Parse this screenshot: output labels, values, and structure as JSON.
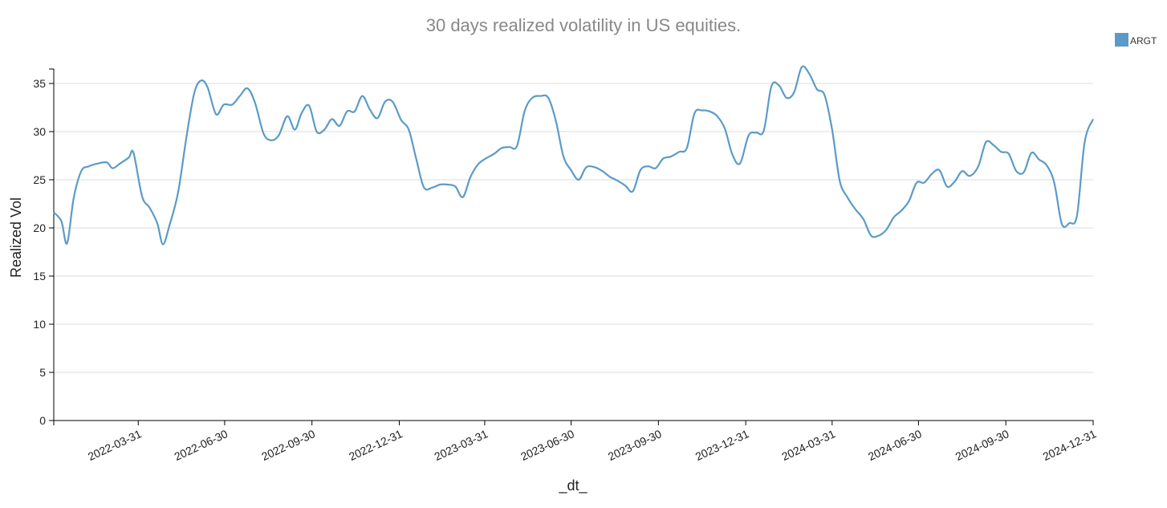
{
  "chart_data": {
    "type": "line",
    "title": "30 days realized volatility in US equities.",
    "xlabel": "_dt_",
    "ylabel": "Realized Vol",
    "ylim": [
      0,
      36.5
    ],
    "xlim": [
      "2022-01-01",
      "2024-12-31"
    ],
    "yticks": [
      0,
      5,
      10,
      15,
      20,
      25,
      30,
      35
    ],
    "xticks": [
      "2022-03-31",
      "2022-06-30",
      "2022-09-30",
      "2022-12-31",
      "2023-03-31",
      "2023-06-30",
      "2023-09-30",
      "2023-12-31",
      "2024-03-31",
      "2024-06-30",
      "2024-09-30",
      "2024-12-31"
    ],
    "grid": "horizontal",
    "legend_position": "top-right",
    "series": [
      {
        "name": "ARGT",
        "color": "#5b9bc8",
        "points": [
          [
            "2022-01-01",
            21.6
          ],
          [
            "2022-01-09",
            20.7
          ],
          [
            "2022-01-15",
            18.4
          ],
          [
            "2022-01-22",
            23.1
          ],
          [
            "2022-01-30",
            25.9
          ],
          [
            "2022-02-07",
            26.4
          ],
          [
            "2022-02-17",
            26.7
          ],
          [
            "2022-02-26",
            26.8
          ],
          [
            "2022-03-04",
            26.2
          ],
          [
            "2022-03-12",
            26.7
          ],
          [
            "2022-03-21",
            27.3
          ],
          [
            "2022-03-26",
            27.8
          ],
          [
            "2022-04-04",
            23.3
          ],
          [
            "2022-04-12",
            22.1
          ],
          [
            "2022-04-20",
            20.5
          ],
          [
            "2022-04-26",
            18.3
          ],
          [
            "2022-05-03",
            20.3
          ],
          [
            "2022-05-12",
            23.7
          ],
          [
            "2022-05-21",
            29.6
          ],
          [
            "2022-05-29",
            34.0
          ],
          [
            "2022-06-05",
            35.3
          ],
          [
            "2022-06-12",
            34.6
          ],
          [
            "2022-06-21",
            31.8
          ],
          [
            "2022-06-29",
            32.8
          ],
          [
            "2022-07-08",
            32.8
          ],
          [
            "2022-07-16",
            33.7
          ],
          [
            "2022-07-24",
            34.5
          ],
          [
            "2022-08-01",
            33.0
          ],
          [
            "2022-08-10",
            29.8
          ],
          [
            "2022-08-18",
            29.1
          ],
          [
            "2022-08-26",
            29.6
          ],
          [
            "2022-09-04",
            31.6
          ],
          [
            "2022-09-12",
            30.2
          ],
          [
            "2022-09-19",
            31.9
          ],
          [
            "2022-09-27",
            32.7
          ],
          [
            "2022-10-05",
            30.0
          ],
          [
            "2022-10-13",
            30.2
          ],
          [
            "2022-10-21",
            31.3
          ],
          [
            "2022-10-29",
            30.6
          ],
          [
            "2022-11-06",
            32.1
          ],
          [
            "2022-11-14",
            32.1
          ],
          [
            "2022-11-22",
            33.7
          ],
          [
            "2022-11-30",
            32.3
          ],
          [
            "2022-12-08",
            31.4
          ],
          [
            "2022-12-16",
            33.1
          ],
          [
            "2022-12-24",
            33.1
          ],
          [
            "2023-01-02",
            31.2
          ],
          [
            "2023-01-10",
            30.2
          ],
          [
            "2023-01-18",
            27.1
          ],
          [
            "2023-01-26",
            24.2
          ],
          [
            "2023-02-04",
            24.2
          ],
          [
            "2023-02-12",
            24.5
          ],
          [
            "2023-02-20",
            24.5
          ],
          [
            "2023-02-28",
            24.3
          ],
          [
            "2023-03-08",
            23.2
          ],
          [
            "2023-03-16",
            25.3
          ],
          [
            "2023-03-24",
            26.6
          ],
          [
            "2023-04-01",
            27.2
          ],
          [
            "2023-04-10",
            27.7
          ],
          [
            "2023-04-18",
            28.3
          ],
          [
            "2023-04-26",
            28.4
          ],
          [
            "2023-05-04",
            28.5
          ],
          [
            "2023-05-12",
            32.1
          ],
          [
            "2023-05-20",
            33.5
          ],
          [
            "2023-05-29",
            33.7
          ],
          [
            "2023-06-06",
            33.5
          ],
          [
            "2023-06-14",
            31.1
          ],
          [
            "2023-06-22",
            27.4
          ],
          [
            "2023-06-30",
            26.0
          ],
          [
            "2023-07-08",
            25.0
          ],
          [
            "2023-07-16",
            26.3
          ],
          [
            "2023-07-25",
            26.3
          ],
          [
            "2023-08-02",
            25.9
          ],
          [
            "2023-08-10",
            25.3
          ],
          [
            "2023-08-18",
            24.9
          ],
          [
            "2023-08-26",
            24.4
          ],
          [
            "2023-09-03",
            23.8
          ],
          [
            "2023-09-11",
            26.0
          ],
          [
            "2023-09-19",
            26.4
          ],
          [
            "2023-09-27",
            26.2
          ],
          [
            "2023-10-05",
            27.2
          ],
          [
            "2023-10-13",
            27.4
          ],
          [
            "2023-10-22",
            27.9
          ],
          [
            "2023-10-30",
            28.3
          ],
          [
            "2023-11-07",
            31.9
          ],
          [
            "2023-11-15",
            32.2
          ],
          [
            "2023-11-23",
            32.1
          ],
          [
            "2023-12-01",
            31.6
          ],
          [
            "2023-12-09",
            30.3
          ],
          [
            "2023-12-17",
            27.6
          ],
          [
            "2023-12-25",
            26.7
          ],
          [
            "2024-01-03",
            29.6
          ],
          [
            "2024-01-11",
            29.9
          ],
          [
            "2024-01-19",
            30.1
          ],
          [
            "2024-01-27",
            34.7
          ],
          [
            "2024-02-04",
            34.8
          ],
          [
            "2024-02-12",
            33.5
          ],
          [
            "2024-02-20",
            34.1
          ],
          [
            "2024-02-28",
            36.7
          ],
          [
            "2024-03-07",
            36.0
          ],
          [
            "2024-03-15",
            34.4
          ],
          [
            "2024-03-23",
            33.8
          ],
          [
            "2024-03-31",
            30.2
          ],
          [
            "2024-04-08",
            24.9
          ],
          [
            "2024-04-16",
            23.2
          ],
          [
            "2024-04-24",
            22.0
          ],
          [
            "2024-05-03",
            20.9
          ],
          [
            "2024-05-11",
            19.2
          ],
          [
            "2024-05-19",
            19.2
          ],
          [
            "2024-05-27",
            19.8
          ],
          [
            "2024-06-04",
            21.1
          ],
          [
            "2024-06-12",
            21.8
          ],
          [
            "2024-06-20",
            22.8
          ],
          [
            "2024-06-28",
            24.7
          ],
          [
            "2024-07-06",
            24.7
          ],
          [
            "2024-07-14",
            25.6
          ],
          [
            "2024-07-22",
            26.0
          ],
          [
            "2024-07-30",
            24.3
          ],
          [
            "2024-08-07",
            24.8
          ],
          [
            "2024-08-15",
            25.9
          ],
          [
            "2024-08-23",
            25.4
          ],
          [
            "2024-09-01",
            26.4
          ],
          [
            "2024-09-09",
            28.9
          ],
          [
            "2024-09-17",
            28.6
          ],
          [
            "2024-09-25",
            27.9
          ],
          [
            "2024-10-03",
            27.7
          ],
          [
            "2024-10-11",
            25.9
          ],
          [
            "2024-10-19",
            25.8
          ],
          [
            "2024-10-27",
            27.8
          ],
          [
            "2024-11-04",
            27.1
          ],
          [
            "2024-11-12",
            26.5
          ],
          [
            "2024-11-20",
            24.7
          ],
          [
            "2024-11-28",
            20.4
          ],
          [
            "2024-12-06",
            20.5
          ],
          [
            "2024-12-14",
            21.3
          ],
          [
            "2024-12-22",
            28.9
          ],
          [
            "2024-12-31",
            31.3
          ]
        ]
      }
    ]
  }
}
